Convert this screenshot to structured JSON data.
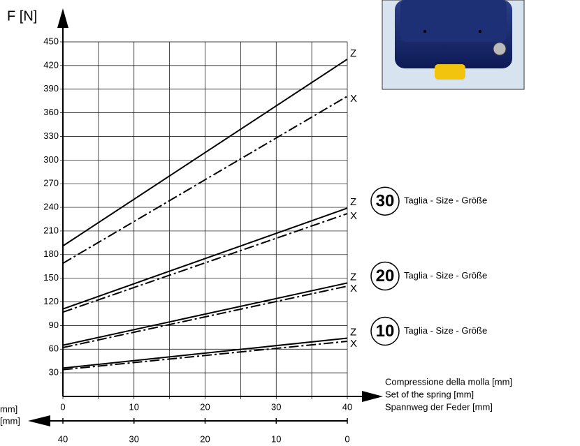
{
  "chart_data": {
    "type": "line",
    "y_label": "F [N]",
    "x_label": [
      "Compressione della molla [mm]",
      "Set of the spring [mm]",
      "Spannweg der Feder [mm]"
    ],
    "x2_label": [
      "mm]",
      "[mm]"
    ],
    "x": [
      0,
      40
    ],
    "xlim": [
      0,
      40
    ],
    "xticks": [
      0,
      10,
      20,
      30,
      40
    ],
    "x2lim": [
      40,
      0
    ],
    "x2ticks": [
      40,
      30,
      20,
      10,
      0
    ],
    "ylim": [
      0,
      450
    ],
    "yticks": [
      30,
      60,
      90,
      120,
      150,
      180,
      210,
      240,
      270,
      300,
      330,
      360,
      390,
      420,
      450
    ],
    "grid": true,
    "series": [
      {
        "name": "Z",
        "color": "#000000",
        "style": "solid",
        "values": [
          191,
          428
        ]
      },
      {
        "name": "X",
        "color": "#000000",
        "style": "dashdot",
        "values": [
          169,
          381
        ]
      },
      {
        "name": "Z",
        "color": "#000000",
        "style": "solid",
        "values": [
          111,
          239
        ]
      },
      {
        "name": "X",
        "color": "#000000",
        "style": "dashdot",
        "values": [
          107,
          232
        ]
      },
      {
        "name": "Z",
        "color": "#000000",
        "style": "solid",
        "values": [
          65,
          144
        ]
      },
      {
        "name": "X",
        "color": "#000000",
        "style": "dashdot",
        "values": [
          62,
          140
        ]
      },
      {
        "name": "Z",
        "color": "#000000",
        "style": "solid",
        "values": [
          36,
          74
        ]
      },
      {
        "name": "X",
        "color": "#000000",
        "style": "dashdot",
        "values": [
          34,
          70
        ]
      }
    ],
    "sizes": [
      {
        "number": "30",
        "label": "Taglia - Size - Größe"
      },
      {
        "number": "20",
        "label": "Taglia - Size - Größe"
      },
      {
        "number": "10",
        "label": "Taglia - Size - Größe"
      }
    ]
  }
}
